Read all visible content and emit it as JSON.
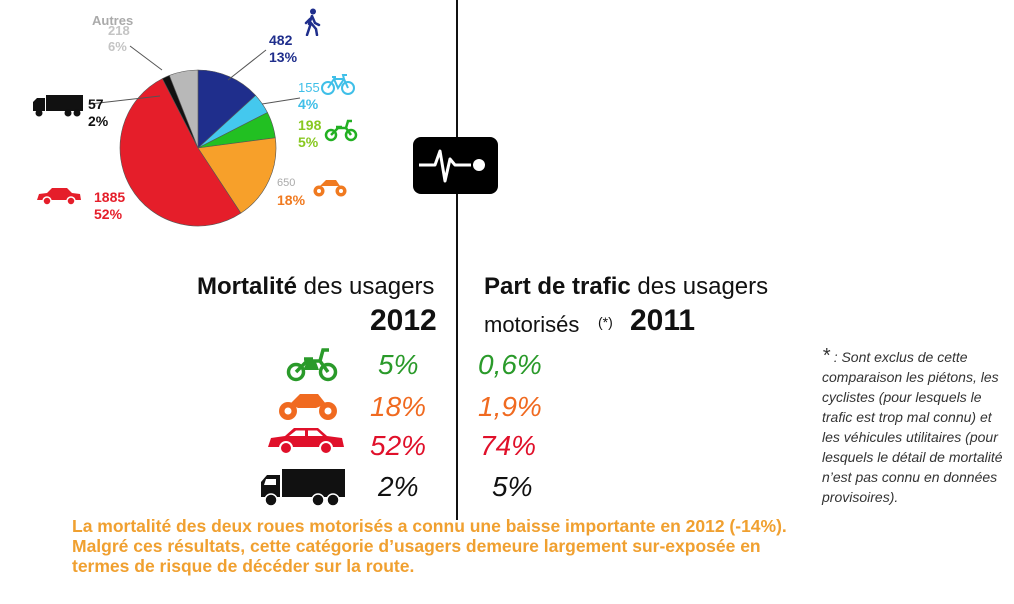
{
  "chart_data": [
    {
      "type": "pie",
      "slices": [
        {
          "category": "piétons",
          "label": "482",
          "percent": "13%",
          "color": "#1f2e8c"
        },
        {
          "category": "cyclistes",
          "label": "155",
          "percent": "4%",
          "color": "#44c8ee"
        },
        {
          "category": "cyclomoteurs",
          "label": "198",
          "percent": "5%",
          "color": "#22c022"
        },
        {
          "category": "motos",
          "label": "650",
          "percent": "18%",
          "color": "#f7a02a"
        },
        {
          "category": "voitures",
          "label": "1885",
          "percent": "52%",
          "color": "#e51e2a"
        },
        {
          "category": "poids lourds",
          "label": "57",
          "percent": "2%",
          "color": "#111111"
        },
        {
          "category": "Autres",
          "label": "218",
          "percent": "6%",
          "color": "#b8b8b8"
        }
      ],
      "values": [
        482,
        155,
        198,
        650,
        1885,
        57,
        218
      ]
    },
    {
      "type": "table",
      "columns": {
        "left_bold": "Mortalité",
        "left_rest": " des usagers",
        "left_year": "2012",
        "right_bold": "Part de trafic",
        "right_rest": " des usagers",
        "right_line2": "motorisés",
        "right_star": "(*)",
        "right_year": "2011"
      },
      "rows": [
        {
          "vehicle": "moped-icon",
          "mortalite": "5%",
          "trafic": "0,6%",
          "color": "#2a9a2a"
        },
        {
          "vehicle": "motorbike-icon",
          "mortalite": "18%",
          "trafic": "1,9%",
          "color": "#f06a20"
        },
        {
          "vehicle": "car-icon",
          "mortalite": "52%",
          "trafic": "74%",
          "color": "#e0102a"
        },
        {
          "vehicle": "truck-icon",
          "mortalite": "2%",
          "trafic": "5%",
          "color": "#111111"
        }
      ]
    }
  ],
  "pie_labels": {
    "autres_name": "Autres",
    "autres_value": "218",
    "autres_pct": "6%",
    "pietons_value": "482",
    "pietons_pct": "13%",
    "cyclistes_value": "155",
    "cyclistes_pct": "4%",
    "cyclo_value": "198",
    "cyclo_pct": "5%",
    "moto_value": "650",
    "moto_pct": "18%",
    "voiture_value": "1885",
    "voiture_pct": "52%",
    "pl_value": "57",
    "pl_pct": "2%"
  },
  "note": {
    "asterisk": "*",
    "text": ": Sont exclus de cette comparaison les piétons, les cyclistes (pour lesquels le trafic est trop mal connu) et les véhicules utilitaires (pour lesquels le détail de mortalité n’est pas connu en données provisoires)."
  },
  "summary": "La mortalité des deux roues motorisés a connu une baisse importante en 2012 (-14%). Malgré ces résultats, cette catégorie d’usagers demeure largement sur-exposée en termes de risque de décéder sur la route."
}
